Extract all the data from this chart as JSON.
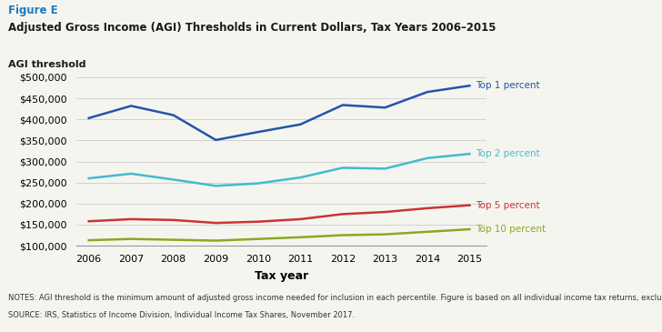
{
  "figure_label": "Figure E",
  "title": "Adjusted Gross Income (AGI) Thresholds in Current Dollars, Tax Years 2006–2015",
  "ylabel": "AGI threshold",
  "xlabel": "Tax year",
  "years": [
    2006,
    2007,
    2008,
    2009,
    2010,
    2011,
    2012,
    2013,
    2014,
    2015
  ],
  "series": {
    "Top 1 percent": {
      "values": [
        403000,
        432000,
        410000,
        351000,
        370000,
        388000,
        434000,
        428000,
        465000,
        480000
      ],
      "color": "#2255aa",
      "label_color": "#2255aa"
    },
    "Top 2 percent": {
      "values": [
        260000,
        271000,
        257000,
        242000,
        248000,
        262000,
        285000,
        283000,
        308000,
        318000
      ],
      "color": "#44bbcc",
      "label_color": "#44bbcc"
    },
    "Top 5 percent": {
      "values": [
        158000,
        163000,
        161000,
        154000,
        157000,
        163000,
        175000,
        180000,
        189000,
        196000
      ],
      "color": "#cc3333",
      "label_color": "#cc3333"
    },
    "Top 10 percent": {
      "values": [
        113000,
        116000,
        114000,
        112000,
        116000,
        120000,
        125000,
        127000,
        133000,
        139000
      ],
      "color": "#88aa22",
      "label_color": "#88aa22"
    }
  },
  "ylim": [
    100000,
    510000
  ],
  "yticks": [
    100000,
    150000,
    200000,
    250000,
    300000,
    350000,
    400000,
    450000,
    500000
  ],
  "background_color": "#f5f5f0",
  "notes_line1": "NOTES: AGI threshold is the minimum amount of adjusted gross income needed for inclusion in each percentile. Figure is based on all individual income tax returns, excluding dependents.",
  "notes_line2": "SOURCE: IRS, Statistics of Income Division, Individual Income Tax Shares, November 2017."
}
